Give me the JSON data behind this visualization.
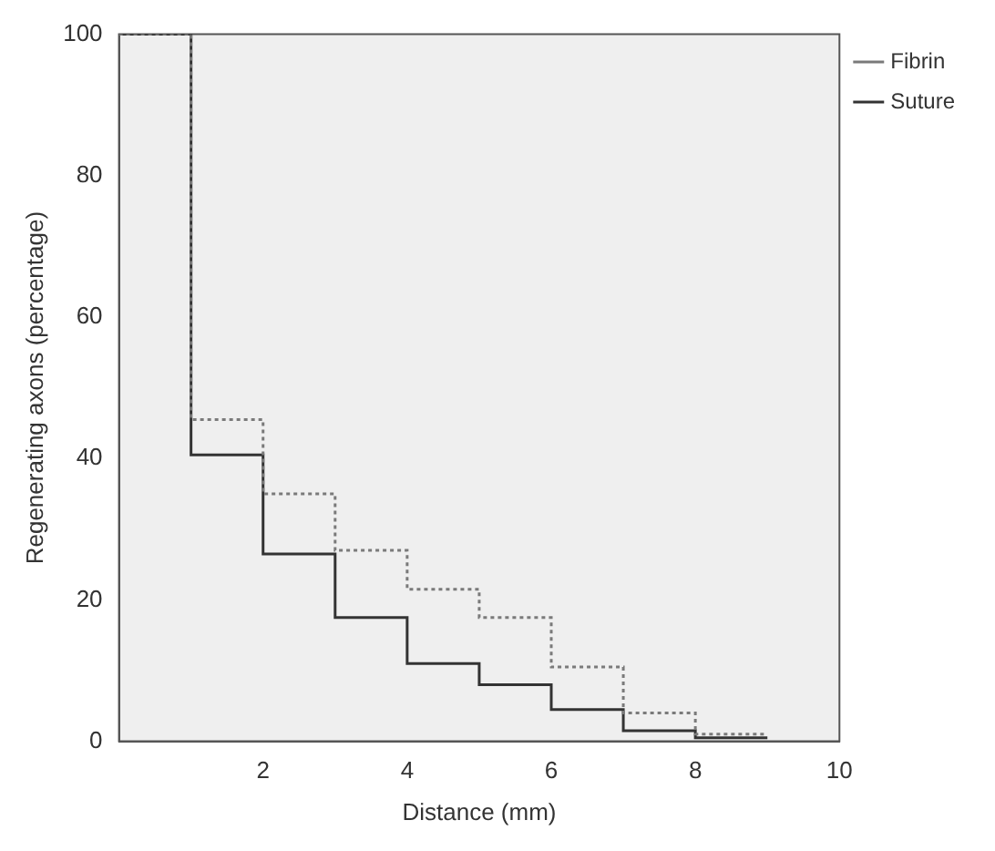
{
  "chart_data": {
    "type": "step",
    "xlabel": "Distance (mm)",
    "ylabel": "Regenerating axons (percentage)",
    "x": [
      0,
      1,
      2,
      3,
      4,
      5,
      6,
      7,
      8,
      9
    ],
    "series": [
      {
        "name": "Fibrin",
        "color": "#7a7a7a",
        "line_style": "dotted",
        "values": [
          100,
          45.5,
          35,
          27,
          21.5,
          17.5,
          10.5,
          4,
          1,
          1
        ]
      },
      {
        "name": "Suture",
        "color": "#333333",
        "line_style": "solid",
        "values": [
          100,
          40.5,
          26.5,
          17.5,
          11,
          8,
          4.5,
          1.5,
          0.5,
          0.5
        ]
      }
    ],
    "xlim": [
      0,
      10
    ],
    "xticks": [
      2,
      4,
      6,
      8,
      10
    ],
    "ylim": [
      0,
      100
    ],
    "yticks": [
      0,
      20,
      40,
      60,
      80,
      100
    ],
    "grid": false,
    "legend": "top right",
    "marker": "none"
  }
}
